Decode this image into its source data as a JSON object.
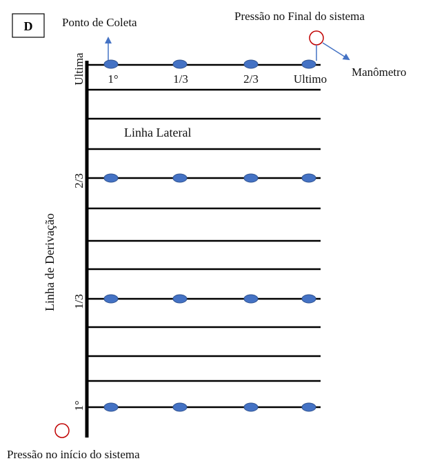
{
  "panel_label": "D",
  "labels": {
    "collection_point": "Ponto de Coleta",
    "end_pressure": "Pressão no Final do sistema",
    "manometer": "Manômetro",
    "lateral_line": "Linha Lateral",
    "derivation_line": "Linha de Derivação",
    "start_pressure": "Pressão no início do sistema"
  },
  "lateral_positions": [
    "1°",
    "1/3",
    "2/3",
    "Ultimo"
  ],
  "derivation_positions": [
    "Ultima",
    "2/3",
    "1/3",
    "1°"
  ],
  "colors": {
    "line": "#000000",
    "point_fill": "#4472C4",
    "point_stroke": "#2F528F",
    "arrow": "#4472C4",
    "marker_circle": "#C00000"
  }
}
